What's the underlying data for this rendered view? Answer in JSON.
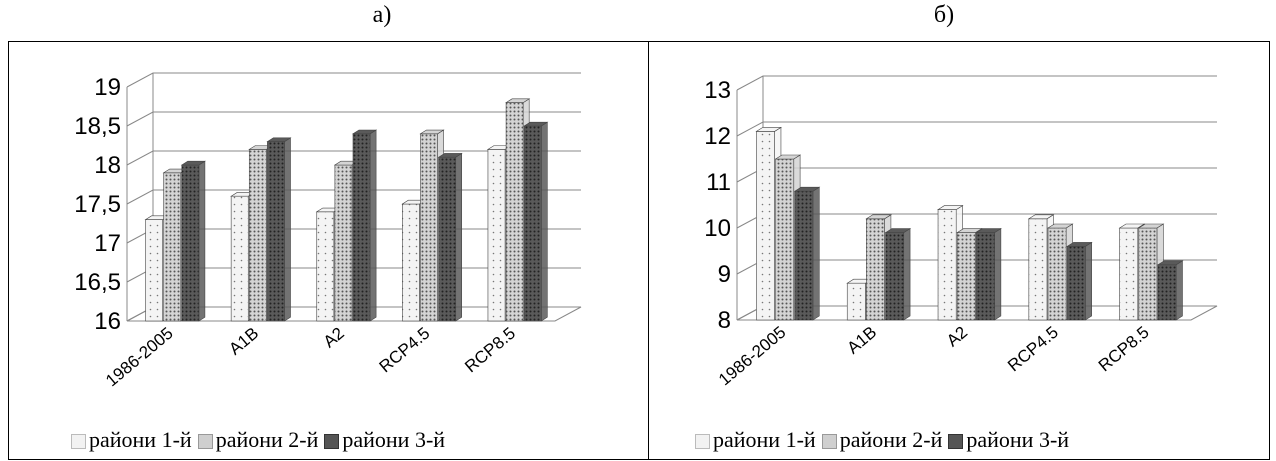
{
  "panels": [
    {
      "label": "а)"
    },
    {
      "label": "б)"
    }
  ],
  "chart_data": [
    {
      "type": "bar",
      "categories": [
        "1986-2005",
        "A1B",
        "A2",
        "RCP4.5",
        "RCP8.5"
      ],
      "series": [
        {
          "name": "райони 1-й",
          "values": [
            17.3,
            17.6,
            17.4,
            17.5,
            18.2
          ]
        },
        {
          "name": "райони 2-й",
          "values": [
            17.9,
            18.2,
            18.0,
            18.4,
            18.8
          ]
        },
        {
          "name": "райони 3-й",
          "values": [
            18.0,
            18.3,
            18.4,
            18.1,
            18.5
          ]
        }
      ],
      "yticks": [
        "16",
        "16,5",
        "17",
        "17,5",
        "18",
        "18,5",
        "19"
      ],
      "ylim": [
        16,
        19
      ],
      "grid": true,
      "legend": "bottom"
    },
    {
      "type": "bar",
      "categories": [
        "1986-2005",
        "A1B",
        "A2",
        "RCP4.5",
        "RCP8.5"
      ],
      "series": [
        {
          "name": "райони 1-й",
          "values": [
            12.1,
            8.8,
            10.4,
            10.2,
            10.0
          ]
        },
        {
          "name": "райони 2-й",
          "values": [
            11.5,
            10.2,
            9.9,
            10.0,
            10.0
          ]
        },
        {
          "name": "райони 3-й",
          "values": [
            10.8,
            9.9,
            9.9,
            9.6,
            9.2
          ]
        }
      ],
      "yticks": [
        "8",
        "9",
        "10",
        "11",
        "12",
        "13"
      ],
      "ylim": [
        8,
        13
      ],
      "grid": true,
      "legend": "bottom"
    }
  ]
}
